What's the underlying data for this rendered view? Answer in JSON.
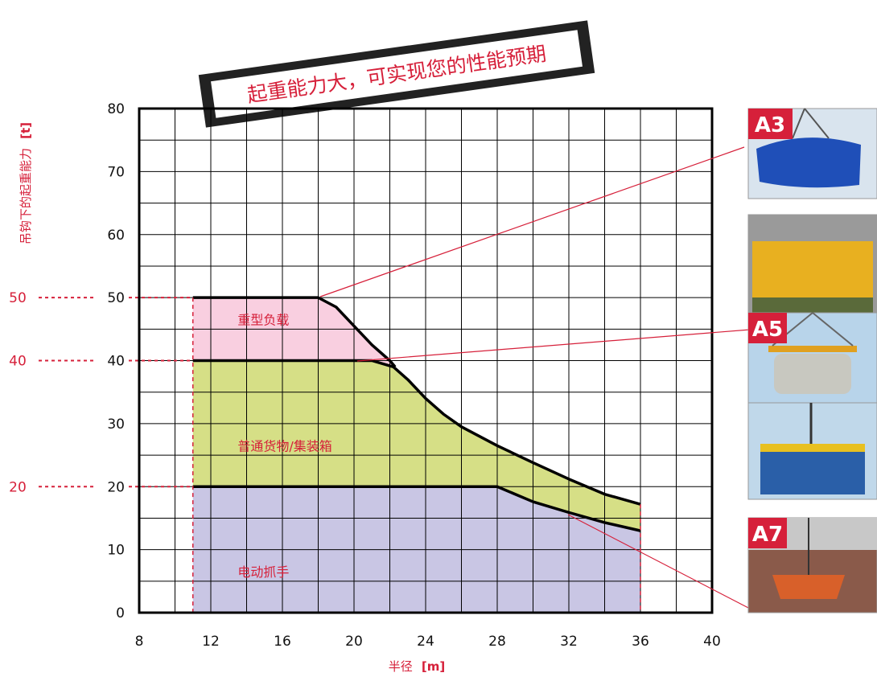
{
  "banner": {
    "text": "起重能力大，可实现您的性能预期"
  },
  "photos": [
    {
      "tag": "A3"
    },
    {
      "tag": ""
    },
    {
      "tag": "A5"
    },
    {
      "tag": ""
    },
    {
      "tag": "A7"
    }
  ],
  "chart_data": {
    "type": "area",
    "xlabel": "半径",
    "xunit": "[m]",
    "ylabel": "吊钩下的起重能力",
    "yunit": "[t]",
    "xlim": [
      8,
      40
    ],
    "ylim": [
      0,
      80
    ],
    "x_ticks": [
      8,
      12,
      16,
      20,
      24,
      28,
      32,
      36,
      40
    ],
    "y_ticks": [
      0,
      10,
      20,
      30,
      40,
      50,
      60,
      70,
      80
    ],
    "highlight_levels": [
      50,
      40,
      20
    ],
    "grid": true,
    "regions": [
      {
        "name": "重型负载",
        "color": "#f9cfe0",
        "label_at": [
          13.5,
          46.5
        ],
        "points": [
          [
            11,
            50
          ],
          [
            18,
            50
          ],
          [
            19,
            48.5
          ],
          [
            20,
            45.5
          ],
          [
            21,
            42.5
          ],
          [
            22,
            40
          ],
          [
            22.3,
            39
          ],
          [
            11,
            39
          ]
        ]
      },
      {
        "name": "普通货物/集装箱",
        "color": "#d6df86",
        "label_at": [
          13.5,
          26.5
        ],
        "points": [
          [
            11,
            40
          ],
          [
            21,
            40
          ],
          [
            22.2,
            39
          ],
          [
            23,
            37
          ],
          [
            24,
            34
          ],
          [
            25,
            31.5
          ],
          [
            26,
            29.5
          ],
          [
            28,
            26.5
          ],
          [
            30,
            23.8
          ],
          [
            32,
            21.2
          ],
          [
            34,
            18.8
          ],
          [
            36,
            17.2
          ],
          [
            36,
            13
          ],
          [
            34,
            14.3
          ],
          [
            32,
            15.9
          ],
          [
            30,
            17.6
          ],
          [
            28,
            20
          ],
          [
            11,
            20
          ]
        ]
      },
      {
        "name": "电动抓手",
        "color": "#c9c6e4",
        "label_at": [
          13.5,
          6.5
        ],
        "points": [
          [
            11,
            20
          ],
          [
            28,
            20
          ],
          [
            30,
            17.6
          ],
          [
            32,
            15.9
          ],
          [
            34,
            14.3
          ],
          [
            36,
            13
          ],
          [
            36,
            0
          ],
          [
            11,
            0
          ]
        ]
      }
    ],
    "curves": [
      {
        "points": [
          [
            11,
            50
          ],
          [
            18,
            50
          ],
          [
            19,
            48.5
          ],
          [
            20,
            45.5
          ],
          [
            21,
            42.5
          ],
          [
            22,
            40
          ],
          [
            22.3,
            39
          ]
        ]
      },
      {
        "points": [
          [
            11,
            40
          ],
          [
            21,
            40
          ],
          [
            22.2,
            39
          ],
          [
            23,
            37
          ],
          [
            24,
            34
          ],
          [
            25,
            31.5
          ],
          [
            26,
            29.5
          ],
          [
            28,
            26.5
          ],
          [
            30,
            23.8
          ],
          [
            32,
            21.2
          ],
          [
            34,
            18.8
          ],
          [
            36,
            17.2
          ]
        ]
      },
      {
        "points": [
          [
            11,
            20
          ],
          [
            28,
            20
          ],
          [
            30,
            17.6
          ],
          [
            32,
            15.9
          ],
          [
            34,
            14.3
          ],
          [
            36,
            13
          ]
        ]
      }
    ],
    "dashed_limits": [
      11,
      36
    ]
  }
}
